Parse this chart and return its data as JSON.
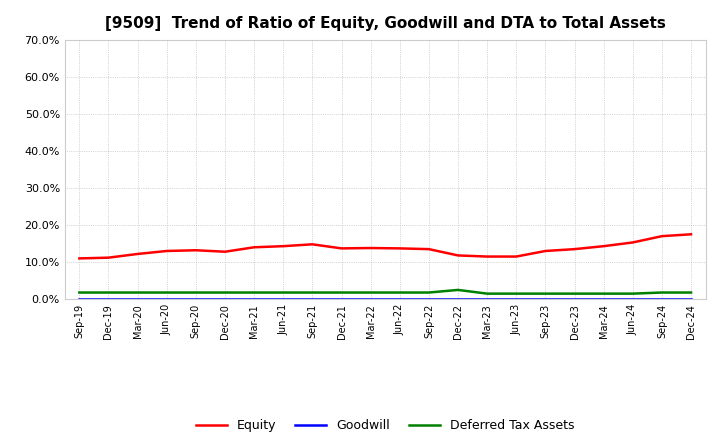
{
  "title": "[9509]  Trend of Ratio of Equity, Goodwill and DTA to Total Assets",
  "x_labels": [
    "Sep-19",
    "Dec-19",
    "Mar-20",
    "Jun-20",
    "Sep-20",
    "Dec-20",
    "Mar-21",
    "Jun-21",
    "Sep-21",
    "Dec-21",
    "Mar-22",
    "Jun-22",
    "Sep-22",
    "Dec-22",
    "Mar-23",
    "Jun-23",
    "Sep-23",
    "Dec-23",
    "Mar-24",
    "Jun-24",
    "Sep-24",
    "Dec-24"
  ],
  "equity": [
    11.0,
    11.2,
    12.2,
    13.0,
    13.2,
    12.8,
    14.0,
    14.3,
    14.8,
    13.7,
    13.8,
    13.7,
    13.5,
    11.8,
    11.5,
    11.5,
    13.0,
    13.5,
    14.3,
    15.3,
    17.0,
    17.5
  ],
  "goodwill": [
    0.0,
    0.0,
    0.0,
    0.0,
    0.0,
    0.0,
    0.0,
    0.0,
    0.0,
    0.0,
    0.0,
    0.0,
    0.0,
    0.0,
    0.0,
    0.0,
    0.0,
    0.0,
    0.0,
    0.0,
    0.0,
    0.0
  ],
  "dta": [
    1.8,
    1.8,
    1.8,
    1.8,
    1.8,
    1.8,
    1.8,
    1.8,
    1.8,
    1.8,
    1.8,
    1.8,
    1.8,
    2.5,
    1.5,
    1.5,
    1.5,
    1.5,
    1.5,
    1.5,
    1.8,
    1.8
  ],
  "equity_color": "#ff0000",
  "goodwill_color": "#0000ff",
  "dta_color": "#008000",
  "ylim": [
    0.0,
    70.0
  ],
  "yticks": [
    0.0,
    10.0,
    20.0,
    30.0,
    40.0,
    50.0,
    60.0,
    70.0
  ],
  "background_color": "#ffffff",
  "grid_color": "#aaaaaa",
  "title_fontsize": 11,
  "legend_labels": [
    "Equity",
    "Goodwill",
    "Deferred Tax Assets"
  ]
}
